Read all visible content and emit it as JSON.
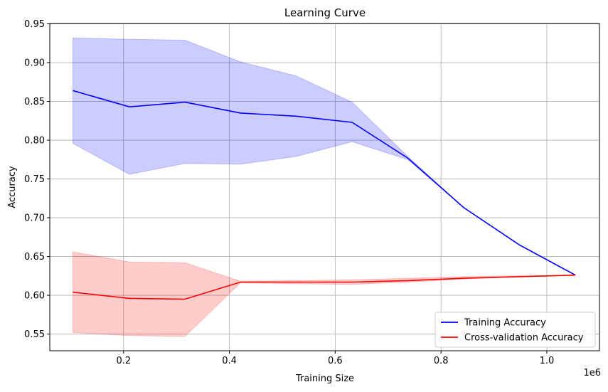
{
  "chart_data": {
    "type": "line",
    "title": "Learning Curve",
    "xlabel": "Training Size",
    "ylabel": "Accuracy",
    "x_offset_label": "1e6",
    "xlim": [
      0.0605,
      1.0995
    ],
    "ylim": [
      0.5285,
      0.9505
    ],
    "x_ticks": [
      0.2,
      0.4,
      0.6,
      0.8,
      1.0
    ],
    "x_tick_labels": [
      "0.2",
      "0.4",
      "0.6",
      "0.8",
      "1.0"
    ],
    "y_ticks": [
      0.55,
      0.6,
      0.65,
      0.7,
      0.75,
      0.8,
      0.85,
      0.9,
      0.95
    ],
    "y_tick_labels": [
      "0.55",
      "0.60",
      "0.65",
      "0.70",
      "0.75",
      "0.80",
      "0.85",
      "0.90",
      "0.95"
    ],
    "grid": true,
    "legend_position": "lower-right",
    "x": [
      0.104,
      0.211,
      0.316,
      0.421,
      0.526,
      0.632,
      0.737,
      0.843,
      0.948,
      1.054
    ],
    "series": [
      {
        "name": "Training Accuracy",
        "color": "#0000ff",
        "band_color": "#0000ff",
        "values": [
          0.864,
          0.843,
          0.849,
          0.835,
          0.831,
          0.823,
          0.777,
          0.713,
          0.665,
          0.626
        ],
        "lower": [
          0.796,
          0.756,
          0.77,
          0.769,
          0.779,
          0.798,
          0.775,
          0.713,
          0.665,
          0.626
        ],
        "upper": [
          0.932,
          0.93,
          0.929,
          0.901,
          0.883,
          0.849,
          0.779,
          0.713,
          0.665,
          0.626
        ]
      },
      {
        "name": "Cross-validation Accuracy",
        "color": "#ff0000",
        "band_color": "#ff0000",
        "values": [
          0.604,
          0.596,
          0.595,
          0.617,
          0.617,
          0.617,
          0.619,
          0.622,
          0.624,
          0.626
        ],
        "lower": [
          0.552,
          0.548,
          0.547,
          0.616,
          0.615,
          0.614,
          0.617,
          0.621,
          0.624,
          0.626
        ],
        "upper": [
          0.656,
          0.643,
          0.642,
          0.618,
          0.619,
          0.62,
          0.622,
          0.624,
          0.625,
          0.626
        ]
      }
    ]
  }
}
